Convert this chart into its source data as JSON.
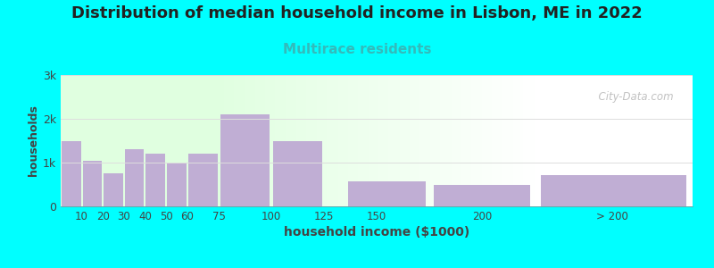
{
  "title": "Distribution of median household income in Lisbon, ME in 2022",
  "subtitle": "Multirace residents",
  "xlabel": "household income ($1000)",
  "ylabel": "households",
  "title_fontsize": 13,
  "subtitle_fontsize": 11,
  "subtitle_color": "#33bbbb",
  "background_color": "#00ffff",
  "bar_color": "#c0aed4",
  "bar_edge_color": "#b0a0c8",
  "bar_left_edges": [
    0,
    10,
    20,
    30,
    40,
    50,
    60,
    75,
    100,
    125,
    135,
    175,
    225
  ],
  "bar_widths": [
    10,
    10,
    10,
    10,
    10,
    10,
    15,
    25,
    25,
    10,
    40,
    50,
    75
  ],
  "values": [
    1500,
    1050,
    750,
    1300,
    1200,
    980,
    1200,
    2100,
    1500,
    0,
    580,
    500,
    720
  ],
  "xtick_positions": [
    10,
    20,
    30,
    40,
    50,
    60,
    75,
    100,
    125,
    150,
    200,
    262
  ],
  "xtick_labels": [
    "10",
    "20",
    "30",
    "40",
    "50",
    "60",
    "75",
    "100",
    "125",
    "150",
    "200",
    "> 200"
  ],
  "xlim": [
    0,
    300
  ],
  "ylim": [
    0,
    3000
  ],
  "yticks": [
    0,
    1000,
    2000,
    3000
  ],
  "ytick_labels": [
    "0",
    "1k",
    "2k",
    "3k"
  ],
  "watermark": "  City-Data.com"
}
